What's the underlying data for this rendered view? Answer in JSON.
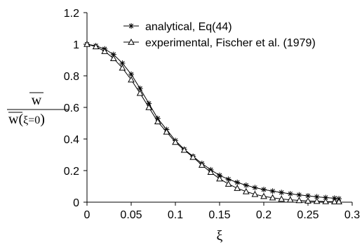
{
  "chart_data": {
    "type": "line",
    "xlabel": "ξ",
    "ylabel": {
      "numerator": "w",
      "denominator_pre": "w(",
      "denominator_mid": "ξ=0",
      "denominator_post": ")"
    },
    "xlim": [
      0,
      0.3
    ],
    "ylim": [
      0,
      1.2
    ],
    "x_ticks": [
      0,
      0.05,
      0.1,
      0.15,
      0.2,
      0.25,
      0.3
    ],
    "x_tick_labels": [
      "0",
      "0.05",
      "0.1",
      "0.15",
      "0.2",
      "0.25",
      "0.3"
    ],
    "y_ticks": [
      0,
      0.2,
      0.4,
      0.6,
      0.8,
      1.0,
      1.2
    ],
    "y_tick_labels": [
      "0",
      "0.2",
      "0.4",
      "0.6",
      "0.8",
      "1",
      "1.2"
    ],
    "grid": false,
    "legend_position": "top-right",
    "series": [
      {
        "name": "analytical, Eq(44)",
        "marker": "asterisk",
        "x": [
          0,
          0.01,
          0.02,
          0.03,
          0.04,
          0.05,
          0.06,
          0.07,
          0.08,
          0.09,
          0.1,
          0.11,
          0.12,
          0.13,
          0.14,
          0.15,
          0.16,
          0.17,
          0.18,
          0.19,
          0.2,
          0.21,
          0.22,
          0.23,
          0.24,
          0.25,
          0.26,
          0.27,
          0.28,
          0.285
        ],
        "y": [
          1.0,
          0.99,
          0.97,
          0.935,
          0.88,
          0.81,
          0.72,
          0.625,
          0.53,
          0.46,
          0.39,
          0.335,
          0.29,
          0.245,
          0.205,
          0.17,
          0.145,
          0.125,
          0.107,
          0.092,
          0.08,
          0.07,
          0.061,
          0.053,
          0.046,
          0.04,
          0.034,
          0.029,
          0.025,
          0.022
        ]
      },
      {
        "name": "experimental, Fischer et al. (1979)",
        "marker": "triangle",
        "x": [
          0,
          0.01,
          0.02,
          0.03,
          0.04,
          0.05,
          0.06,
          0.07,
          0.08,
          0.09,
          0.1,
          0.11,
          0.12,
          0.13,
          0.14,
          0.15,
          0.16,
          0.17,
          0.18,
          0.19,
          0.2,
          0.21,
          0.22,
          0.23,
          0.24,
          0.25,
          0.26,
          0.27,
          0.28,
          0.285
        ],
        "y": [
          1.0,
          0.985,
          0.955,
          0.91,
          0.85,
          0.775,
          0.69,
          0.6,
          0.51,
          0.445,
          0.38,
          0.33,
          0.285,
          0.235,
          0.19,
          0.148,
          0.115,
          0.088,
          0.067,
          0.05,
          0.037,
          0.028,
          0.02,
          0.015,
          0.011,
          0.008,
          0.006,
          0.004,
          0.003,
          0.003
        ]
      }
    ]
  }
}
